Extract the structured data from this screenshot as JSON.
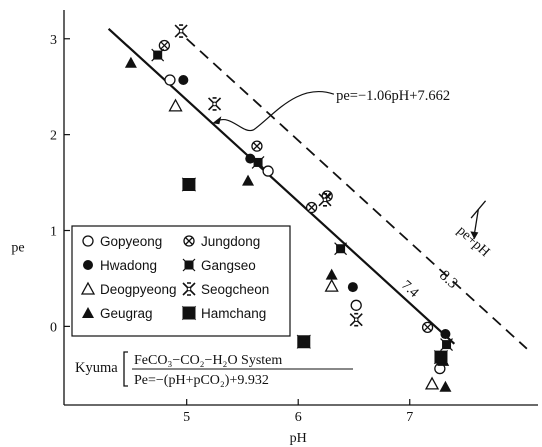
{
  "chart_data": {
    "type": "scatter",
    "xlabel": "pH",
    "ylabel": "pe",
    "xlim": [
      3.9,
      8.15
    ],
    "ylim": [
      -0.82,
      3.3
    ],
    "x_ticks": [
      5,
      6,
      7
    ],
    "y_ticks": [
      0,
      1,
      2,
      3
    ],
    "grid": false,
    "legend_position": "bottom-left",
    "lines": [
      {
        "style": "solid",
        "equation": "pe=−1.06pH+7.662",
        "slope": -1.06,
        "intercept": 7.662,
        "x_range": [
          4.3,
          7.4
        ],
        "label": "7.4"
      },
      {
        "style": "dashed",
        "slope": -1.06,
        "intercept": 8.3,
        "x_range": [
          5.0,
          8.05
        ],
        "label": "8.3",
        "rotated_label": "pe+pH"
      }
    ],
    "series": [
      {
        "name": "Gopyeong",
        "marker": "open-circle",
        "points": [
          [
            4.85,
            2.57
          ],
          [
            5.73,
            1.62
          ],
          [
            6.52,
            0.22
          ],
          [
            7.27,
            -0.44
          ]
        ]
      },
      {
        "name": "Hwadong",
        "marker": "filled-circle",
        "points": [
          [
            4.97,
            2.57
          ],
          [
            5.57,
            1.75
          ],
          [
            6.49,
            0.41
          ],
          [
            7.32,
            -0.08
          ]
        ]
      },
      {
        "name": "Deogpyeong",
        "marker": "open-triangle",
        "points": [
          [
            4.9,
            2.3
          ],
          [
            6.3,
            0.42
          ],
          [
            7.2,
            -0.6
          ]
        ]
      },
      {
        "name": "Geugrag",
        "marker": "filled-triangle",
        "points": [
          [
            4.5,
            2.75
          ],
          [
            5.55,
            1.52
          ],
          [
            6.3,
            0.54
          ],
          [
            7.3,
            -0.36
          ],
          [
            7.32,
            -0.63
          ]
        ]
      },
      {
        "name": "Jungdong",
        "marker": "crossed-circle",
        "points": [
          [
            4.8,
            2.93
          ],
          [
            5.63,
            1.88
          ],
          [
            6.12,
            1.24
          ],
          [
            6.26,
            1.36
          ],
          [
            7.16,
            -0.01
          ]
        ]
      },
      {
        "name": "Gangseo",
        "marker": "crossed-square",
        "points": [
          [
            4.74,
            2.83
          ],
          [
            5.64,
            1.71
          ],
          [
            6.38,
            0.81
          ],
          [
            7.33,
            -0.19
          ]
        ]
      },
      {
        "name": "Seogcheon",
        "marker": "double-cross",
        "points": [
          [
            4.95,
            3.08
          ],
          [
            5.25,
            2.32
          ],
          [
            6.24,
            1.32
          ],
          [
            6.52,
            0.07
          ]
        ]
      },
      {
        "name": "Hamchang",
        "marker": "bowtie",
        "points": [
          [
            5.02,
            1.48
          ],
          [
            6.05,
            -0.16
          ],
          [
            7.28,
            -0.32
          ]
        ]
      }
    ],
    "annotations": [
      {
        "text": "pe=−1.06pH+7.662"
      },
      {
        "text": "7.4"
      },
      {
        "text": "8.3"
      },
      {
        "text": "pe+pH"
      }
    ],
    "kyuma_box": {
      "label": "Kyuma",
      "line1": "FeCO₃−CO₂−H₂O System",
      "line2": "Pe=−(pH+pCO₂)+9.932"
    }
  }
}
